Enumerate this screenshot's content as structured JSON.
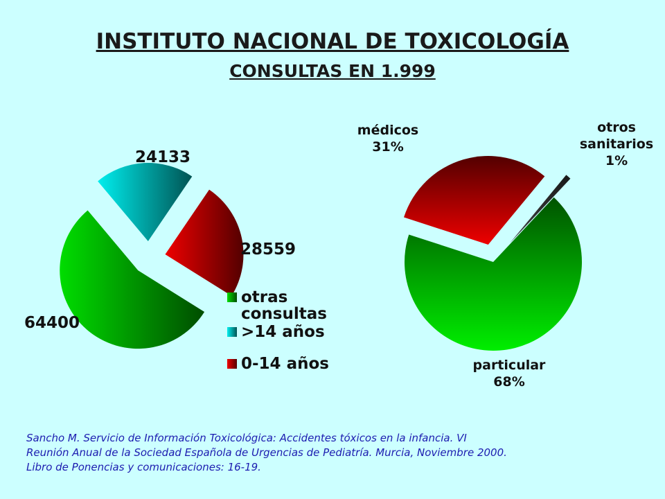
{
  "header": {
    "title": "INSTITUTO NACIONAL DE TOXICOLOGÍA",
    "subtitle": "CONSULTAS EN 1.999"
  },
  "chart_data": [
    {
      "type": "pie",
      "categories": [
        "otras consultas",
        ">14 años",
        "0-14 años"
      ],
      "values": [
        64400,
        24133,
        28559
      ],
      "colors": [
        "#00dd00",
        "#00eeee",
        "#ee0000"
      ],
      "legend": true
    },
    {
      "type": "pie",
      "categories": [
        "particular",
        "médicos",
        "otros sanitarios"
      ],
      "values": [
        68,
        31,
        1
      ],
      "value_labels": [
        "68%",
        "31%",
        "1%"
      ],
      "colors": [
        "#00ee00",
        "#ee0000",
        "#444444"
      ],
      "legend": false
    }
  ],
  "source": [
    "Sancho M. Servicio de Información Toxicológica: Accidentes tóxicos en la infancia. VI",
    "Reunión Anual de la Sociedad Española de Urgencias de Pediatría. Murcia, Noviembre 2000.",
    "Libro de Ponencias y comunicaciones: 16-19."
  ]
}
